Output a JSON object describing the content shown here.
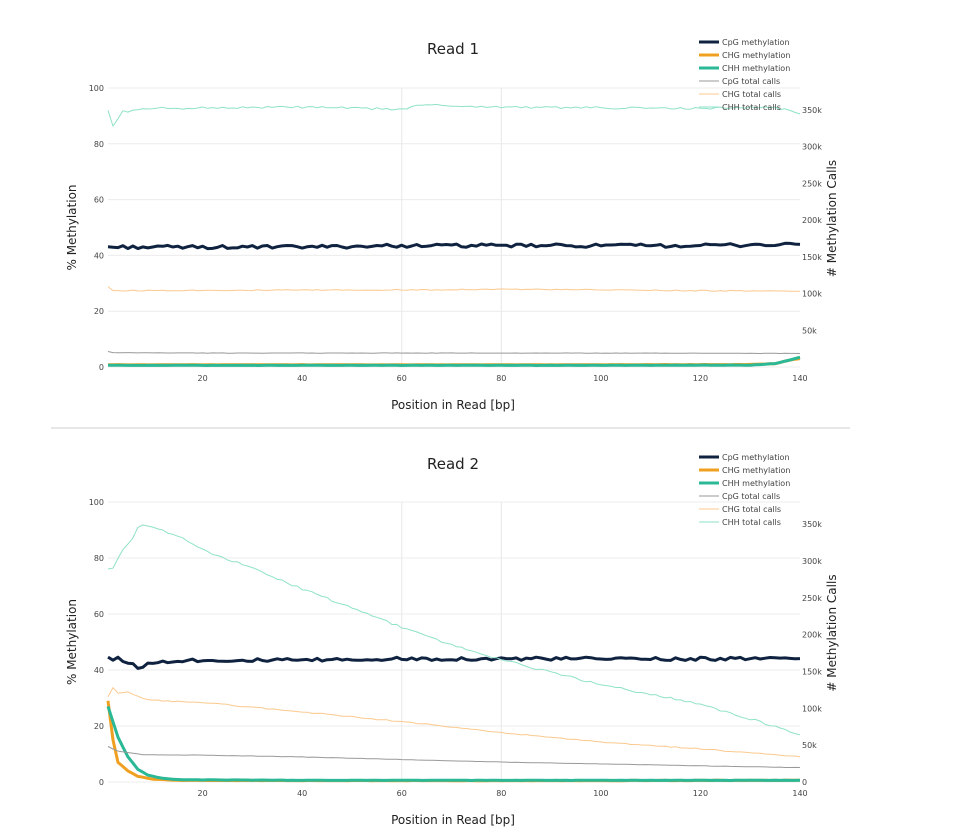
{
  "chart_data": [
    {
      "type": "line",
      "title": "Read 1",
      "xlabel": "Position in Read [bp]",
      "ylabel": "% Methylation",
      "y2label": "# Methylation Calls",
      "xlim": [
        1,
        140
      ],
      "ylim": [
        0,
        100
      ],
      "y2lim": [
        0,
        380000
      ],
      "x_ticks": [
        "20",
        "40",
        "60",
        "80",
        "100",
        "120",
        "140"
      ],
      "y_ticks": [
        "0",
        "20",
        "40",
        "60",
        "80",
        "100"
      ],
      "y2_ticks": [
        "50k",
        "100k",
        "150k",
        "200k",
        "250k",
        "300k",
        "350k"
      ],
      "legend_position": "top-right",
      "series": [
        {
          "name": "CpG methylation",
          "axis": "y",
          "color": "#0f2340",
          "width": 3,
          "points": [
            [
              1,
              43
            ],
            [
              10,
              43
            ],
            [
              20,
              43
            ],
            [
              40,
              43
            ],
            [
              60,
              43.5
            ],
            [
              80,
              43.5
            ],
            [
              100,
              43.5
            ],
            [
              120,
              43.5
            ],
            [
              140,
              44
            ]
          ]
        },
        {
          "name": "CHG methylation",
          "axis": "y",
          "color": "#f0a020",
          "width": 3,
          "points": [
            [
              1,
              0.8
            ],
            [
              20,
              0.8
            ],
            [
              60,
              0.8
            ],
            [
              100,
              0.8
            ],
            [
              130,
              0.9
            ],
            [
              135,
              1.2
            ],
            [
              138,
              2.5
            ],
            [
              140,
              3
            ]
          ]
        },
        {
          "name": "CHH methylation",
          "axis": "y",
          "color": "#2bb896",
          "width": 3,
          "points": [
            [
              1,
              0.6
            ],
            [
              20,
              0.6
            ],
            [
              60,
              0.6
            ],
            [
              100,
              0.6
            ],
            [
              130,
              0.7
            ],
            [
              135,
              1.2
            ],
            [
              138,
              2.5
            ],
            [
              140,
              3.5
            ]
          ]
        },
        {
          "name": "CpG total calls",
          "axis": "y2",
          "color": "#999999",
          "width": 1,
          "points": [
            [
              1,
              21000
            ],
            [
              2,
              19500
            ],
            [
              20,
              19000
            ],
            [
              60,
              19000
            ],
            [
              100,
              19000
            ],
            [
              140,
              18500
            ]
          ]
        },
        {
          "name": "CHG total calls",
          "axis": "y2",
          "color": "#fbc98e",
          "width": 1,
          "points": [
            [
              1,
              110000
            ],
            [
              2,
              104000
            ],
            [
              20,
              104500
            ],
            [
              60,
              105000
            ],
            [
              80,
              106000
            ],
            [
              100,
              105000
            ],
            [
              140,
              103000
            ]
          ]
        },
        {
          "name": "CHH total calls",
          "axis": "y2",
          "color": "#8fe2c8",
          "width": 1,
          "points": [
            [
              1,
              350000
            ],
            [
              2,
              328000
            ],
            [
              4,
              348000
            ],
            [
              10,
              352000
            ],
            [
              20,
              353000
            ],
            [
              40,
              354000
            ],
            [
              60,
              351000
            ],
            [
              64,
              357000
            ],
            [
              80,
              354000
            ],
            [
              100,
              353000
            ],
            [
              120,
              352000
            ],
            [
              135,
              354000
            ],
            [
              140,
              345000
            ]
          ]
        }
      ]
    },
    {
      "type": "line",
      "title": "Read 2",
      "xlabel": "Position in Read [bp]",
      "ylabel": "% Methylation",
      "y2label": "# Methylation Calls",
      "xlim": [
        1,
        140
      ],
      "ylim": [
        0,
        100
      ],
      "y2lim": [
        0,
        380000
      ],
      "x_ticks": [
        "20",
        "40",
        "60",
        "80",
        "100",
        "120",
        "140"
      ],
      "y_ticks": [
        "0",
        "20",
        "40",
        "60",
        "80",
        "100"
      ],
      "y2_ticks": [
        "0",
        "50k",
        "100k",
        "150k",
        "200k",
        "250k",
        "300k",
        "350k"
      ],
      "legend_position": "top-right",
      "series": [
        {
          "name": "CpG methylation",
          "axis": "y",
          "color": "#0f2340",
          "width": 3,
          "points": [
            [
              1,
              45
            ],
            [
              2,
              43.5
            ],
            [
              3,
              44.5
            ],
            [
              5,
              42.5
            ],
            [
              7,
              41
            ],
            [
              9,
              42
            ],
            [
              12,
              43
            ],
            [
              15,
              43.5
            ],
            [
              20,
              43.5
            ],
            [
              40,
              43.5
            ],
            [
              60,
              44
            ],
            [
              80,
              44
            ],
            [
              100,
              44
            ],
            [
              120,
              44
            ],
            [
              140,
              44
            ]
          ]
        },
        {
          "name": "CHG methylation",
          "axis": "y",
          "color": "#f0a020",
          "width": 3,
          "points": [
            [
              1,
              29
            ],
            [
              2,
              15
            ],
            [
              3,
              7
            ],
            [
              5,
              4
            ],
            [
              7,
              2
            ],
            [
              10,
              1
            ],
            [
              15,
              0.6
            ],
            [
              40,
              0.5
            ],
            [
              100,
              0.5
            ],
            [
              140,
              0.6
            ]
          ]
        },
        {
          "name": "CHH methylation",
          "axis": "y",
          "color": "#2bb896",
          "width": 3,
          "points": [
            [
              1,
              27
            ],
            [
              3,
              16
            ],
            [
              5,
              9
            ],
            [
              7,
              4.5
            ],
            [
              9,
              2.5
            ],
            [
              12,
              1.3
            ],
            [
              16,
              0.8
            ],
            [
              40,
              0.6
            ],
            [
              100,
              0.6
            ],
            [
              140,
              0.6
            ]
          ]
        },
        {
          "name": "CpG total calls",
          "axis": "y2",
          "color": "#999999",
          "width": 1,
          "points": [
            [
              1,
              48000
            ],
            [
              3,
              42000
            ],
            [
              8,
              37000
            ],
            [
              20,
              36500
            ],
            [
              40,
              34000
            ],
            [
              60,
              30500
            ],
            [
              80,
              27000
            ],
            [
              100,
              24500
            ],
            [
              120,
              22000
            ],
            [
              140,
              19500
            ]
          ]
        },
        {
          "name": "CHG total calls",
          "axis": "y2",
          "color": "#fbc98e",
          "width": 1,
          "points": [
            [
              1,
              115000
            ],
            [
              2,
              128000
            ],
            [
              3,
              120000
            ],
            [
              5,
              122000
            ],
            [
              8,
              113000
            ],
            [
              12,
              110000
            ],
            [
              20,
              108000
            ],
            [
              40,
              95000
            ],
            [
              60,
              82000
            ],
            [
              80,
              67000
            ],
            [
              100,
              54000
            ],
            [
              120,
              45000
            ],
            [
              140,
              34000
            ]
          ]
        },
        {
          "name": "CHH total calls",
          "axis": "y2",
          "color": "#8fe2c8",
          "width": 1,
          "points": [
            [
              1,
              290000
            ],
            [
              2,
              290000
            ],
            [
              4,
              315000
            ],
            [
              6,
              330000
            ],
            [
              7,
              345000
            ],
            [
              8,
              350000
            ],
            [
              10,
              345000
            ],
            [
              15,
              335000
            ],
            [
              20,
              315000
            ],
            [
              30,
              290000
            ],
            [
              40,
              262000
            ],
            [
              60,
              210000
            ],
            [
              70,
              186000
            ],
            [
              80,
              166000
            ],
            [
              100,
              132000
            ],
            [
              120,
              106000
            ],
            [
              140,
              65000
            ]
          ]
        }
      ]
    }
  ]
}
